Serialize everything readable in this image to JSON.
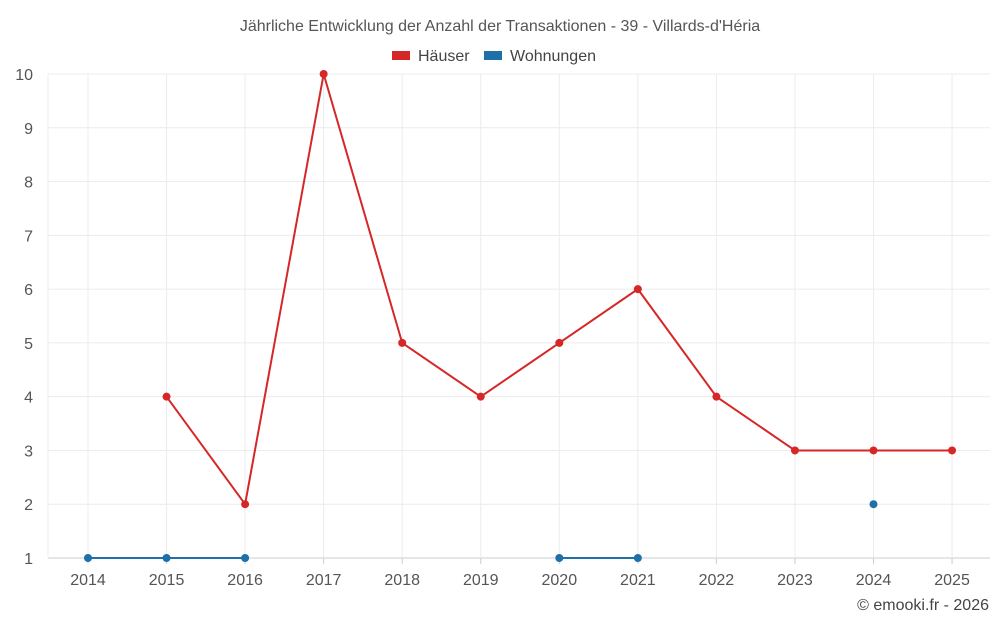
{
  "chart_data": {
    "type": "line",
    "title": "Jährliche Entwicklung der Anzahl der Transaktionen - 39 - Villards-d'Héria",
    "xlabel": "",
    "ylabel": "",
    "categories": [
      "2014",
      "2015",
      "2016",
      "2017",
      "2018",
      "2019",
      "2020",
      "2021",
      "2022",
      "2023",
      "2024",
      "2025"
    ],
    "y_ticks": [
      "1",
      "2",
      "3",
      "4",
      "5",
      "6",
      "7",
      "8",
      "9",
      "10"
    ],
    "ylim": [
      1,
      10
    ],
    "grid": true,
    "legend_position": "top-center",
    "series": [
      {
        "name": "Häuser",
        "color": "#d62728",
        "values": [
          null,
          4,
          2,
          10,
          5,
          4,
          5,
          6,
          4,
          3,
          3,
          3
        ]
      },
      {
        "name": "Wohnungen",
        "color": "#1f6fa8",
        "values": [
          1,
          1,
          1,
          null,
          null,
          null,
          1,
          1,
          null,
          null,
          2,
          null
        ]
      }
    ]
  },
  "credit": "© emooki.fr - 2026"
}
